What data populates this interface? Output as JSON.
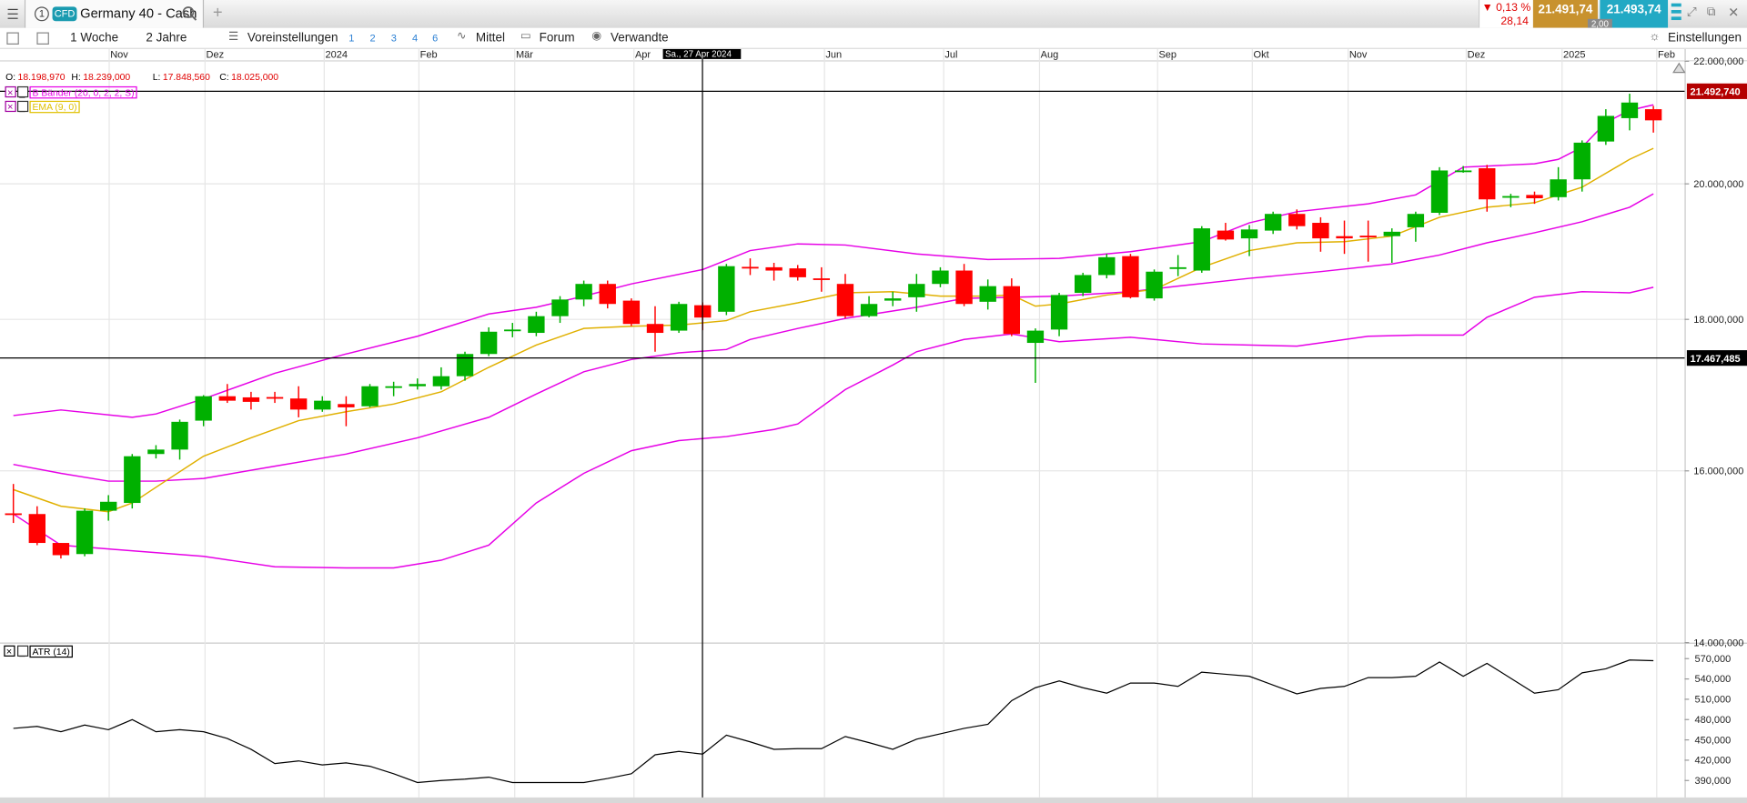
{
  "header": {
    "tab_number": "1",
    "badge": "CFD",
    "instrument": "Germany 40 - Cash",
    "change_pct": "▼ 0,13 %",
    "change_abs": "28,14",
    "sell": "21.491,74",
    "spread": "2,00",
    "buy": "21.493,74"
  },
  "toolbar": {
    "period": "1 Woche",
    "range": "2 Jahre",
    "presets_label": "Voreinstellungen",
    "presets": [
      "1",
      "2",
      "3",
      "4",
      "6"
    ],
    "links": [
      "Mittel",
      "Forum",
      "Verwandte"
    ],
    "settings": "Einstellungen"
  },
  "chart_data": {
    "type": "candlestick",
    "log_scale": true,
    "grid": true,
    "time_labels": [
      "Nov",
      "Dez",
      "2024",
      "Feb",
      "Mär",
      "Apr",
      "Jun",
      "Jul",
      "Aug",
      "Sep",
      "Okt",
      "Nov",
      "Dez",
      "2025",
      "Feb"
    ],
    "crosshair_label": "Sa., 27 Apr 2024",
    "ohlc": [
      {
        "label": "O:",
        "value": "18.198,970"
      },
      {
        "label": "H:",
        "value": "18.239,000"
      },
      {
        "label": "L:",
        "value": "17.848,560"
      },
      {
        "label": "C:",
        "value": "18.025,000"
      }
    ],
    "indicators": [
      {
        "name": "B Bänder (20, 0, 2, 2, S)",
        "color": "#e600e6"
      },
      {
        "name": "EMA (9, 0)",
        "color": "#e0c000"
      }
    ],
    "ylim": [
      14000,
      22000
    ],
    "yticks": [
      {
        "value": 14000,
        "label": "14.000,000"
      },
      {
        "value": 16000,
        "label": "16.000,000"
      },
      {
        "value": 18000,
        "label": "18.000,000"
      },
      {
        "value": 20000,
        "label": "20.000,000"
      },
      {
        "value": 22000,
        "label": "22.000,000"
      }
    ],
    "up_color": "#00b000",
    "down_color": "#ff0000",
    "candles": {
      "open": [
        15480,
        15472,
        15128,
        14998,
        15512,
        15606,
        16211,
        16267,
        16637,
        16956,
        16941,
        16945,
        16926,
        16781,
        16853,
        16824,
        17075,
        17088,
        17088,
        17222,
        17522,
        17850,
        17812,
        18045,
        18280,
        18503,
        18264,
        17936,
        17843,
        18198.97,
        18107,
        18750,
        18744,
        18728,
        18583,
        18503,
        18045,
        18264,
        18312,
        18503,
        18696,
        18248,
        18471,
        17674,
        17858,
        18375,
        18631,
        18907,
        18296,
        18740,
        18696,
        19286,
        19170,
        19286,
        19538,
        19403,
        19203,
        19210,
        19203,
        19336,
        19555,
        20200,
        20244,
        19805,
        19828,
        19794,
        20070,
        20669,
        21048,
        21195
      ],
      "high": [
        15838,
        15566,
        15128,
        15539,
        15701,
        16211,
        16323,
        16651,
        16970,
        17118,
        17014,
        17014,
        17088,
        16956,
        16956,
        17118,
        17148,
        17192,
        17341,
        17553,
        17889,
        17951,
        18107,
        18328,
        18551,
        18551,
        18296,
        18185,
        18248,
        18239,
        18793,
        18874,
        18809,
        18777,
        18744,
        18647,
        18328,
        18391,
        18647,
        18744,
        18793,
        18567,
        18583,
        17874,
        18375,
        18664,
        18940,
        18940,
        18712,
        18923,
        19353,
        19403,
        19370,
        19572,
        19606,
        19487,
        19437,
        19437,
        19320,
        19572,
        20261,
        20279,
        20297,
        19846,
        19880,
        20261,
        20687,
        21195,
        21452,
        21250
      ],
      "low": [
        15365,
        15102,
        14946,
        14972,
        15392,
        15539,
        16155,
        16141,
        16565,
        16868,
        16781,
        16868,
        16680,
        16752,
        16565,
        16810,
        16956,
        17044,
        17044,
        17162,
        17492,
        17751,
        17766,
        17951,
        18185,
        18154,
        17905,
        17553,
        17812,
        17848.56,
        18060,
        18631,
        18551,
        18551,
        18391,
        18014,
        18029,
        18185,
        18107,
        18455,
        18185,
        18138,
        17766,
        17133,
        17766,
        18328,
        18583,
        18296,
        18264,
        18615,
        18664,
        19137,
        18907,
        19236,
        19303,
        18972,
        18940,
        18826,
        18809,
        19120,
        19521,
        20174,
        19572,
        19640,
        19692,
        19743,
        19880,
        20615,
        20849,
        20813
      ],
      "close": [
        15472,
        15128,
        14985,
        15512,
        15620,
        16183,
        16267,
        16622,
        16956,
        16897,
        16882,
        16941,
        16781,
        16897,
        16810,
        17088,
        17088,
        17118,
        17222,
        17522,
        17828,
        17858,
        18045,
        18280,
        18503,
        18217,
        17936,
        17812,
        18217,
        18025,
        18760,
        18744,
        18696,
        18599,
        18567,
        18045,
        18217,
        18296,
        18503,
        18696,
        18217,
        18471,
        17797,
        17843,
        18344,
        18631,
        18891,
        18312,
        18680,
        18744,
        19320,
        19153,
        19303,
        19538,
        19353,
        19170,
        19170,
        19203,
        19269,
        19538,
        20209,
        20209,
        19760,
        19811,
        19777,
        20070,
        20651,
        21085,
        21305,
        21012
      ]
    },
    "lines": [
      {
        "color": "#e600e6",
        "x": [
          0,
          2,
          5,
          6,
          8,
          11,
          14,
          17,
          20,
          22,
          24,
          26,
          29,
          31,
          33,
          35,
          38,
          41,
          44,
          47,
          50,
          52,
          54,
          57,
          59,
          61,
          62,
          64,
          65,
          66,
          67,
          68,
          69
        ],
        "values": [
          16704,
          16776,
          16680,
          16723,
          16922,
          17262,
          17522,
          17766,
          18076,
          18170,
          18328,
          18503,
          18712,
          18988,
          19087,
          19071,
          18940,
          18858,
          18874,
          18972,
          19120,
          19403,
          19572,
          19692,
          19828,
          20261,
          20279,
          20314,
          20385,
          20580,
          20976,
          21176,
          21268
        ]
      },
      {
        "color": "#e600e6",
        "x": [
          0,
          2,
          4,
          6,
          8,
          11,
          14,
          17,
          20,
          22,
          24,
          26,
          28,
          30,
          31,
          33,
          35,
          38,
          40,
          42,
          44,
          47,
          49,
          52,
          55,
          58,
          60,
          62,
          64,
          66,
          68,
          69
        ],
        "values": [
          16081,
          15969,
          15873,
          15873,
          15906,
          16058,
          16211,
          16417,
          16680,
          16985,
          17281,
          17447,
          17538,
          17584,
          17721,
          17874,
          18014,
          18170,
          18296,
          18312,
          18328,
          18391,
          18471,
          18583,
          18680,
          18793,
          18923,
          19104,
          19253,
          19420,
          19640,
          19846
        ]
      },
      {
        "color": "#e600e6",
        "x": [
          0,
          2,
          4,
          8,
          11,
          14,
          16,
          18,
          20,
          22,
          24,
          26,
          28,
          30,
          32,
          33,
          35,
          37,
          38,
          40,
          42,
          44,
          47,
          50,
          54,
          57,
          59,
          61,
          62,
          64,
          66,
          68,
          69
        ],
        "values": [
          15472,
          15102,
          15057,
          14972,
          14850,
          14837,
          14837,
          14927,
          15102,
          15606,
          15969,
          16253,
          16381,
          16432,
          16523,
          16594,
          17044,
          17371,
          17553,
          17721,
          17797,
          17690,
          17751,
          17659,
          17629,
          17766,
          17781,
          17781,
          18029,
          18312,
          18391,
          18375,
          18455
        ]
      },
      {
        "color": "#e0b000",
        "x": [
          0,
          2,
          4,
          5,
          6,
          8,
          10,
          12,
          14,
          16,
          18,
          20,
          22,
          24,
          26,
          28,
          30,
          31,
          33,
          35,
          37,
          39,
          41,
          42,
          43,
          44,
          46,
          48,
          50,
          52,
          54,
          56,
          58,
          60,
          62,
          64,
          66,
          68,
          69
        ],
        "values": [
          15769,
          15566,
          15499,
          15606,
          15797,
          16183,
          16417,
          16637,
          16752,
          16853,
          17014,
          17341,
          17644,
          17874,
          17905,
          17920,
          17982,
          18107,
          18233,
          18375,
          18391,
          18328,
          18328,
          18344,
          18185,
          18217,
          18344,
          18423,
          18744,
          18988,
          19104,
          19120,
          19203,
          19487,
          19640,
          19709,
          19948,
          20385,
          20560
        ]
      }
    ],
    "price_lines": [
      {
        "value": 21492.74,
        "label": "21.492,740",
        "color": "#b40000"
      },
      {
        "value": 17467.485,
        "label": "17.467,485",
        "color": "#000000"
      }
    ],
    "atr": {
      "label": "ATR (14)",
      "color": "#000000",
      "ylim": [
        365,
        592
      ],
      "yticks": [
        {
          "value": 390,
          "label": "390,000"
        },
        {
          "value": 420,
          "label": "420,000"
        },
        {
          "value": 450,
          "label": "450,000"
        },
        {
          "value": 480,
          "label": "480,000"
        },
        {
          "value": 510,
          "label": "510,000"
        },
        {
          "value": 540,
          "label": "540,000"
        },
        {
          "value": 570,
          "label": "570,000"
        }
      ],
      "values": [
        467,
        470,
        462,
        472,
        465,
        480,
        462,
        465,
        462,
        452,
        436,
        415,
        419,
        413,
        416,
        411,
        400,
        387,
        390,
        392,
        395,
        387,
        387,
        387,
        387,
        393,
        400,
        428,
        433,
        429,
        457,
        447,
        436,
        437,
        437,
        455,
        446,
        436,
        451,
        459,
        467,
        473,
        508,
        527,
        537,
        527,
        519,
        534,
        534,
        529,
        550,
        547,
        544,
        531,
        518,
        526,
        529,
        542,
        542,
        544,
        565,
        544,
        563,
        541,
        519,
        524,
        549,
        555,
        568,
        567
      ]
    }
  }
}
